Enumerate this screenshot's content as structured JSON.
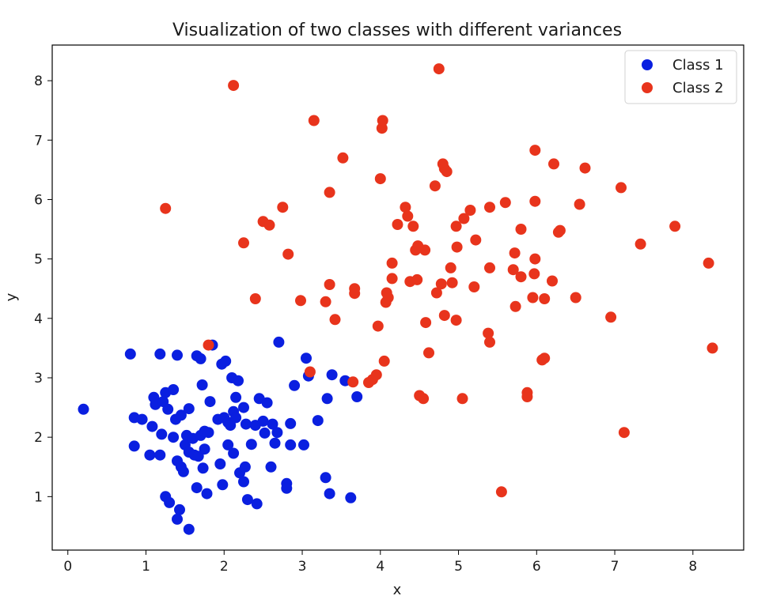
{
  "chart_data": {
    "type": "scatter",
    "title": "Visualization of two classes with different variances",
    "xlabel": "x",
    "ylabel": "y",
    "xlim": [
      -0.2,
      8.65
    ],
    "ylim": [
      0.1,
      8.6
    ],
    "xticks": [
      0,
      1,
      2,
      3,
      4,
      5,
      6,
      7,
      8
    ],
    "yticks": [
      1,
      2,
      3,
      4,
      5,
      6,
      7,
      8
    ],
    "grid": false,
    "legend_position": "top-right",
    "series": [
      {
        "name": "Class 1",
        "color": "#0a1fe0",
        "points": [
          [
            0.2,
            2.47
          ],
          [
            0.8,
            3.4
          ],
          [
            0.85,
            1.85
          ],
          [
            0.85,
            2.33
          ],
          [
            0.95,
            2.3
          ],
          [
            1.05,
            1.7
          ],
          [
            1.08,
            2.18
          ],
          [
            1.1,
            2.67
          ],
          [
            1.12,
            2.55
          ],
          [
            1.18,
            3.4
          ],
          [
            1.18,
            1.7
          ],
          [
            1.2,
            2.05
          ],
          [
            1.22,
            2.6
          ],
          [
            1.25,
            1.0
          ],
          [
            1.25,
            2.75
          ],
          [
            1.28,
            2.47
          ],
          [
            1.3,
            0.9
          ],
          [
            1.35,
            2.0
          ],
          [
            1.35,
            2.8
          ],
          [
            1.38,
            2.3
          ],
          [
            1.4,
            0.62
          ],
          [
            1.4,
            1.6
          ],
          [
            1.4,
            3.38
          ],
          [
            1.43,
            0.78
          ],
          [
            1.45,
            2.37
          ],
          [
            1.45,
            1.5
          ],
          [
            1.48,
            1.42
          ],
          [
            1.5,
            1.87
          ],
          [
            1.52,
            2.03
          ],
          [
            1.55,
            0.45
          ],
          [
            1.55,
            2.48
          ],
          [
            1.55,
            1.75
          ],
          [
            1.6,
            1.98
          ],
          [
            1.62,
            1.7
          ],
          [
            1.65,
            1.15
          ],
          [
            1.65,
            3.37
          ],
          [
            1.67,
            1.68
          ],
          [
            1.7,
            3.32
          ],
          [
            1.7,
            2.03
          ],
          [
            1.72,
            2.88
          ],
          [
            1.73,
            1.48
          ],
          [
            1.75,
            1.8
          ],
          [
            1.75,
            2.1
          ],
          [
            1.78,
            1.05
          ],
          [
            1.8,
            2.08
          ],
          [
            1.82,
            2.6
          ],
          [
            1.85,
            3.55
          ],
          [
            1.92,
            2.3
          ],
          [
            1.95,
            1.55
          ],
          [
            1.97,
            3.23
          ],
          [
            1.98,
            1.2
          ],
          [
            2.0,
            2.33
          ],
          [
            2.02,
            3.28
          ],
          [
            2.05,
            2.25
          ],
          [
            2.05,
            1.87
          ],
          [
            2.08,
            2.2
          ],
          [
            2.1,
            3.0
          ],
          [
            2.12,
            2.43
          ],
          [
            2.12,
            1.73
          ],
          [
            2.15,
            2.67
          ],
          [
            2.15,
            2.33
          ],
          [
            2.18,
            2.95
          ],
          [
            2.2,
            1.4
          ],
          [
            2.25,
            2.5
          ],
          [
            2.25,
            1.25
          ],
          [
            2.27,
            1.5
          ],
          [
            2.28,
            2.22
          ],
          [
            2.3,
            0.95
          ],
          [
            2.35,
            1.88
          ],
          [
            2.4,
            2.2
          ],
          [
            2.42,
            0.88
          ],
          [
            2.45,
            2.65
          ],
          [
            2.5,
            2.27
          ],
          [
            2.52,
            2.07
          ],
          [
            2.55,
            2.58
          ],
          [
            2.6,
            1.5
          ],
          [
            2.62,
            2.22
          ],
          [
            2.65,
            1.9
          ],
          [
            2.68,
            2.08
          ],
          [
            2.7,
            3.6
          ],
          [
            2.8,
            1.22
          ],
          [
            2.8,
            1.14
          ],
          [
            2.85,
            1.87
          ],
          [
            2.85,
            2.23
          ],
          [
            2.9,
            2.87
          ],
          [
            3.02,
            1.87
          ],
          [
            3.05,
            3.33
          ],
          [
            3.08,
            3.03
          ],
          [
            3.2,
            2.28
          ],
          [
            3.3,
            1.32
          ],
          [
            3.32,
            2.65
          ],
          [
            3.35,
            1.05
          ],
          [
            3.38,
            3.05
          ],
          [
            3.55,
            2.95
          ],
          [
            3.62,
            0.98
          ],
          [
            3.7,
            2.68
          ]
        ]
      },
      {
        "name": "Class 2",
        "color": "#e8341c",
        "points": [
          [
            1.25,
            5.85
          ],
          [
            1.8,
            3.55
          ],
          [
            2.12,
            7.92
          ],
          [
            2.25,
            5.27
          ],
          [
            2.4,
            4.33
          ],
          [
            2.5,
            5.63
          ],
          [
            2.58,
            5.57
          ],
          [
            2.75,
            5.87
          ],
          [
            2.82,
            5.08
          ],
          [
            2.98,
            4.3
          ],
          [
            3.1,
            3.1
          ],
          [
            3.15,
            7.33
          ],
          [
            3.3,
            4.28
          ],
          [
            3.35,
            6.12
          ],
          [
            3.35,
            4.57
          ],
          [
            3.42,
            3.98
          ],
          [
            3.52,
            6.7
          ],
          [
            3.65,
            2.93
          ],
          [
            3.67,
            4.5
          ],
          [
            3.67,
            4.42
          ],
          [
            3.85,
            2.92
          ],
          [
            3.9,
            2.97
          ],
          [
            3.95,
            3.05
          ],
          [
            3.97,
            3.87
          ],
          [
            4.0,
            6.35
          ],
          [
            4.02,
            7.2
          ],
          [
            4.03,
            7.33
          ],
          [
            4.05,
            3.28
          ],
          [
            4.07,
            4.27
          ],
          [
            4.08,
            4.43
          ],
          [
            4.1,
            4.35
          ],
          [
            4.15,
            4.67
          ],
          [
            4.15,
            4.93
          ],
          [
            4.22,
            5.58
          ],
          [
            4.32,
            5.87
          ],
          [
            4.35,
            5.72
          ],
          [
            4.38,
            4.62
          ],
          [
            4.42,
            5.55
          ],
          [
            4.45,
            5.15
          ],
          [
            4.47,
            4.65
          ],
          [
            4.48,
            5.22
          ],
          [
            4.5,
            2.7
          ],
          [
            4.55,
            2.65
          ],
          [
            4.57,
            5.15
          ],
          [
            4.58,
            3.93
          ],
          [
            4.62,
            3.42
          ],
          [
            4.7,
            6.23
          ],
          [
            4.72,
            4.43
          ],
          [
            4.75,
            8.2
          ],
          [
            4.78,
            4.58
          ],
          [
            4.8,
            6.6
          ],
          [
            4.82,
            6.52
          ],
          [
            4.82,
            4.05
          ],
          [
            4.85,
            6.47
          ],
          [
            4.9,
            4.85
          ],
          [
            4.92,
            4.6
          ],
          [
            4.97,
            3.97
          ],
          [
            4.97,
            5.55
          ],
          [
            4.98,
            5.2
          ],
          [
            5.05,
            2.65
          ],
          [
            5.07,
            5.68
          ],
          [
            5.15,
            5.82
          ],
          [
            5.2,
            4.53
          ],
          [
            5.22,
            5.32
          ],
          [
            5.38,
            3.75
          ],
          [
            5.4,
            3.6
          ],
          [
            5.4,
            4.85
          ],
          [
            5.4,
            5.87
          ],
          [
            5.55,
            1.08
          ],
          [
            5.6,
            5.95
          ],
          [
            5.7,
            4.82
          ],
          [
            5.72,
            5.1
          ],
          [
            5.73,
            4.2
          ],
          [
            5.8,
            4.7
          ],
          [
            5.8,
            5.5
          ],
          [
            5.88,
            2.75
          ],
          [
            5.88,
            2.68
          ],
          [
            5.95,
            4.35
          ],
          [
            5.97,
            4.75
          ],
          [
            5.98,
            6.83
          ],
          [
            5.98,
            5.0
          ],
          [
            5.98,
            5.97
          ],
          [
            6.07,
            3.3
          ],
          [
            6.1,
            3.33
          ],
          [
            6.1,
            4.33
          ],
          [
            6.2,
            4.63
          ],
          [
            6.22,
            6.6
          ],
          [
            6.28,
            5.45
          ],
          [
            6.3,
            5.48
          ],
          [
            6.5,
            4.35
          ],
          [
            6.55,
            5.92
          ],
          [
            6.62,
            6.53
          ],
          [
            6.95,
            4.02
          ],
          [
            7.08,
            6.2
          ],
          [
            7.12,
            2.08
          ],
          [
            7.33,
            5.25
          ],
          [
            7.77,
            5.55
          ],
          [
            8.2,
            4.93
          ],
          [
            8.25,
            3.5
          ]
        ]
      }
    ]
  }
}
